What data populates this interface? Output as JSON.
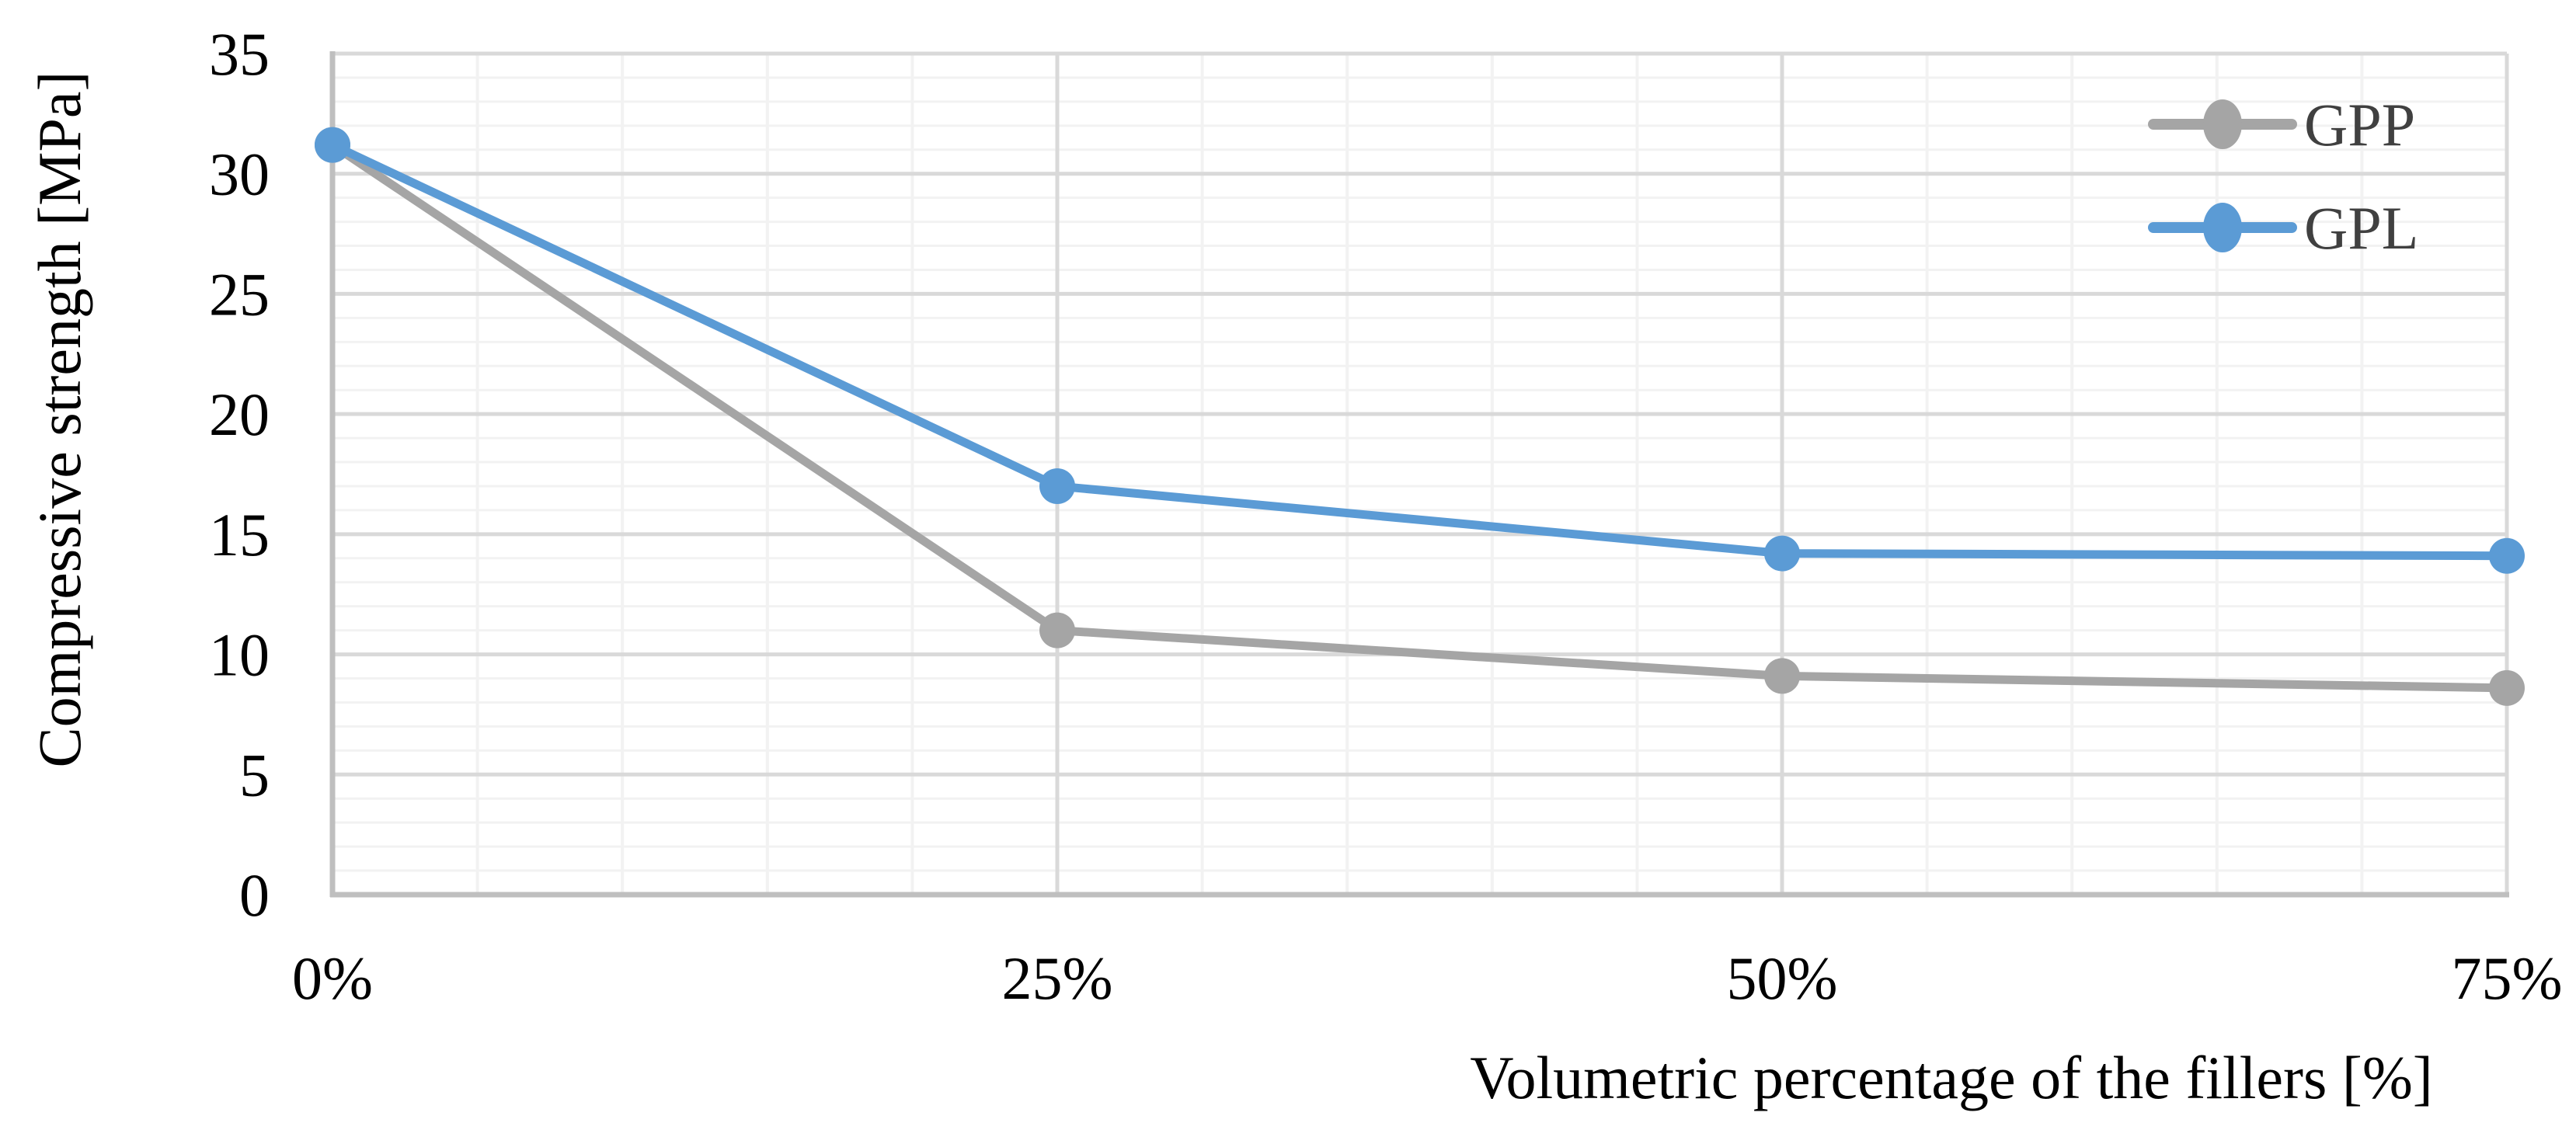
{
  "chart_data": {
    "type": "line",
    "title": "",
    "xlabel": "Volumetric percentage of the fillers [%]",
    "ylabel": "Compressive strength [MPa]",
    "categories": [
      "0%",
      "25%",
      "50%",
      "75%"
    ],
    "series": [
      {
        "name": "GPP",
        "color": "#A5A5A5",
        "values": [
          31.2,
          11.0,
          9.1,
          8.6
        ]
      },
      {
        "name": "GPL",
        "color": "#5B9BD5",
        "values": [
          31.2,
          17.0,
          14.2,
          14.1
        ]
      }
    ],
    "ylim": [
      0,
      35
    ],
    "yticks": [
      0,
      5,
      10,
      15,
      20,
      25,
      30,
      35
    ],
    "y_minor_step": 1,
    "y_major_step": 5,
    "x_minor_divisions_per_interval": 5,
    "grid": true,
    "legend_position": "top-right",
    "marker": "circle",
    "colors": {
      "background": "#FFFFFF",
      "axis_line": "#BFBFBF",
      "grid_major": "#D9D9D9",
      "grid_minor": "#F2F2F2",
      "tick_text": "#000000",
      "legend_text": "#404040"
    }
  }
}
